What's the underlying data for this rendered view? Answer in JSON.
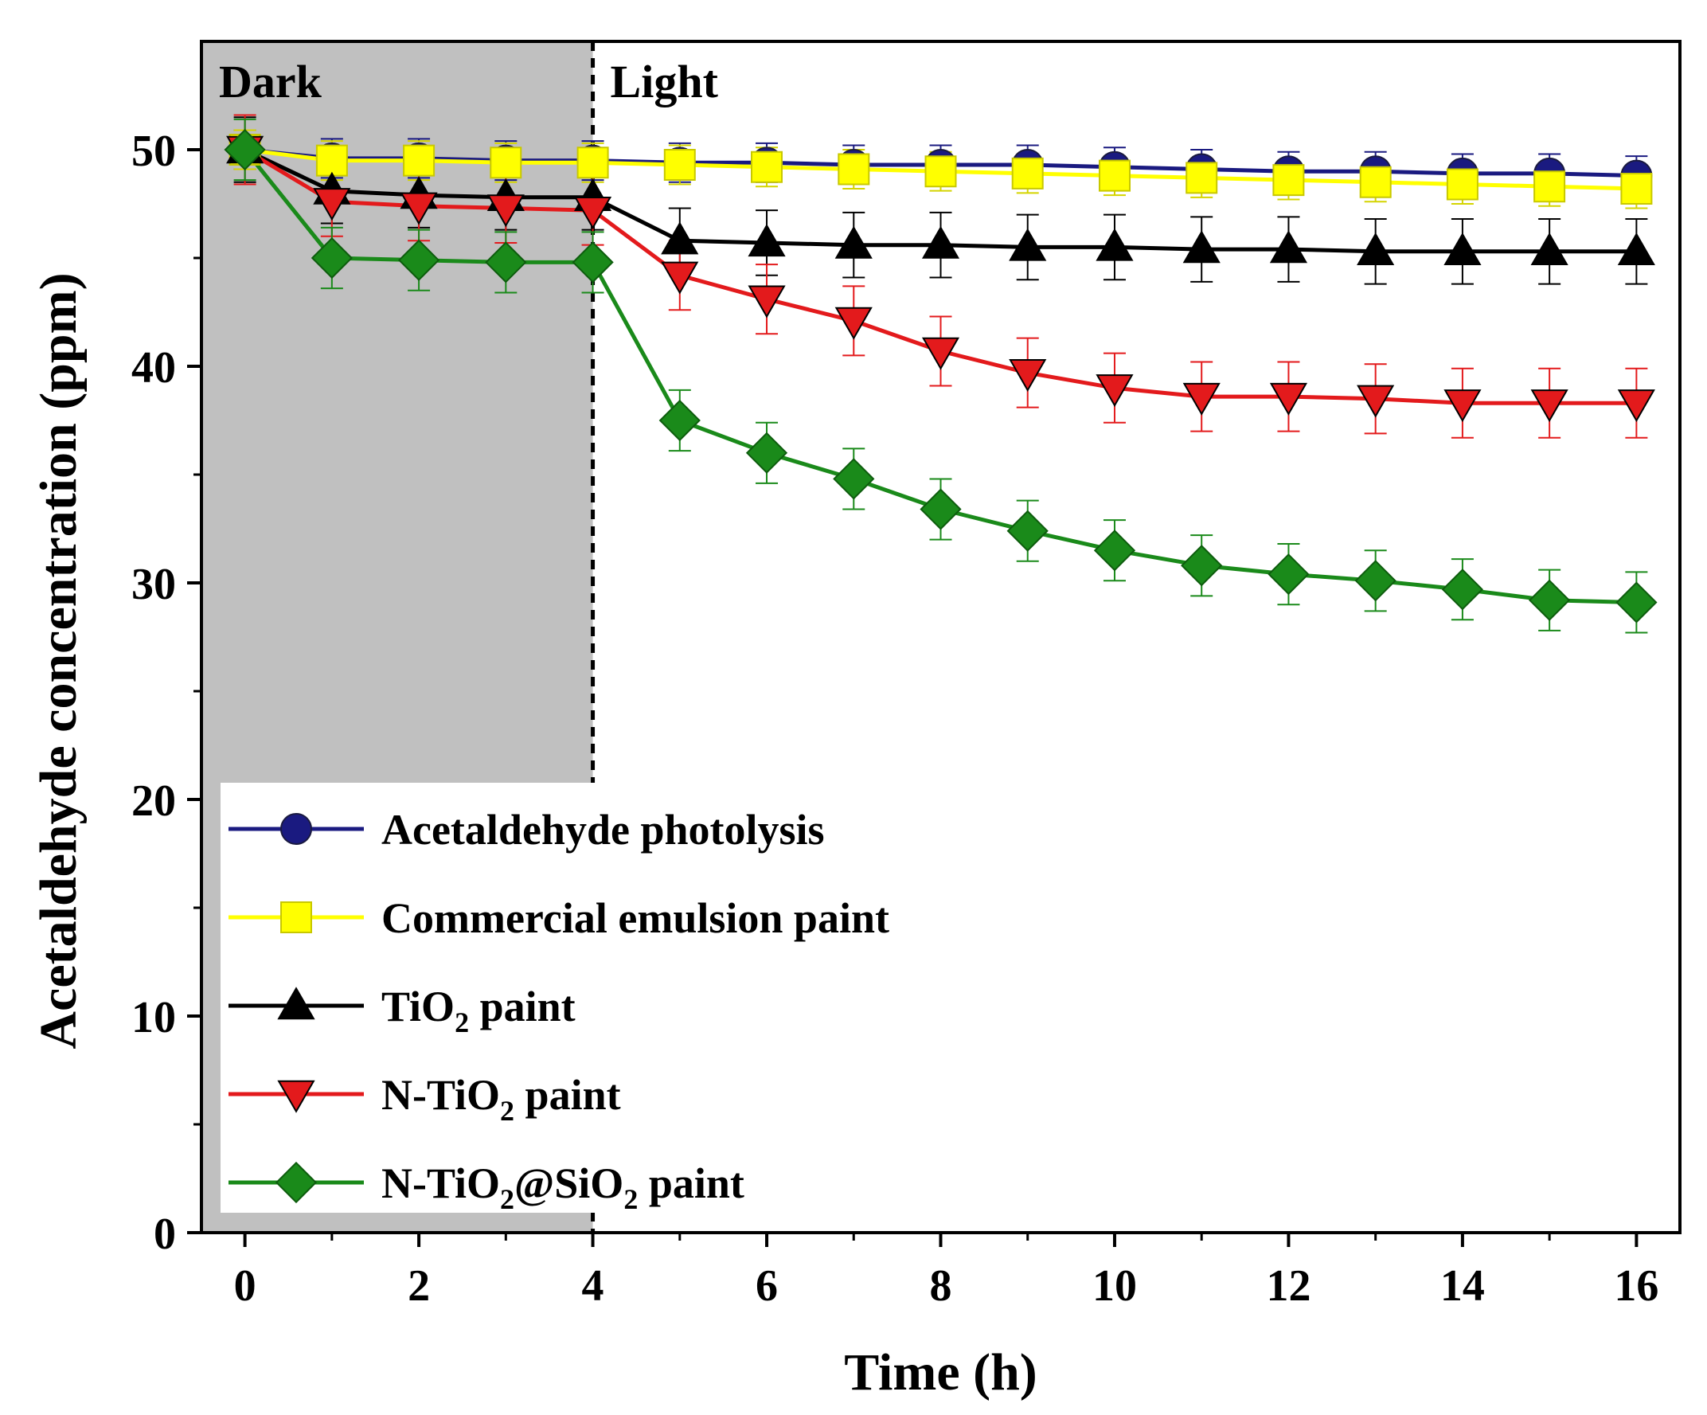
{
  "chart_data": {
    "type": "line",
    "xlabel": "Time (h)",
    "ylabel": "Acetaldehyde concentration (ppm)",
    "xlim": [
      -0.5,
      16.5
    ],
    "ylim": [
      0,
      55
    ],
    "xticks": [
      0,
      2,
      4,
      6,
      8,
      10,
      12,
      14,
      16
    ],
    "yticks": [
      0,
      10,
      20,
      30,
      40,
      50
    ],
    "grid": false,
    "legend_position": "bottom-left",
    "regions": [
      {
        "label": "Dark",
        "x_start": -0.5,
        "x_end": 4,
        "color": "#c0c0c0"
      },
      {
        "label": "Light",
        "x_start": 4,
        "x_end": 16.5
      }
    ],
    "x": [
      0,
      1,
      2,
      3,
      4,
      5,
      6,
      7,
      8,
      9,
      10,
      11,
      12,
      13,
      14,
      15,
      16
    ],
    "series": [
      {
        "name": "Acetaldehyde photolysis",
        "name_parts": [
          {
            "t": "Acetaldehyde photolysis"
          }
        ],
        "color": "#1a1a80",
        "marker": "circle",
        "values": [
          50.0,
          49.6,
          49.6,
          49.5,
          49.5,
          49.4,
          49.4,
          49.3,
          49.3,
          49.3,
          49.2,
          49.1,
          49.0,
          49.0,
          48.9,
          48.9,
          48.8
        ],
        "error": [
          0.9,
          0.9,
          0.9,
          0.9,
          0.9,
          0.9,
          0.9,
          0.9,
          0.9,
          0.9,
          0.9,
          0.9,
          0.9,
          0.9,
          0.9,
          0.9,
          0.9
        ]
      },
      {
        "name": "Commercial emulsion paint",
        "name_parts": [
          {
            "t": "Commercial emulsion paint"
          }
        ],
        "color": "#ffff00",
        "marker": "square",
        "values": [
          50.0,
          49.5,
          49.5,
          49.4,
          49.4,
          49.3,
          49.2,
          49.1,
          49.0,
          48.9,
          48.8,
          48.7,
          48.6,
          48.5,
          48.4,
          48.3,
          48.2
        ],
        "error": [
          0.9,
          0.9,
          0.9,
          0.9,
          0.9,
          0.9,
          0.9,
          0.9,
          0.9,
          0.9,
          0.9,
          0.9,
          0.9,
          0.9,
          0.9,
          0.9,
          0.9
        ]
      },
      {
        "name": "TiO2 paint",
        "name_parts": [
          {
            "t": "TiO"
          },
          {
            "t": "2",
            "sub": true
          },
          {
            "t": " paint"
          }
        ],
        "color": "#000000",
        "marker": "triangle-up",
        "values": [
          50.0,
          48.1,
          47.9,
          47.8,
          47.8,
          45.8,
          45.7,
          45.6,
          45.6,
          45.5,
          45.5,
          45.4,
          45.4,
          45.3,
          45.3,
          45.3,
          45.3
        ],
        "error": [
          1.5,
          1.5,
          1.5,
          1.5,
          1.5,
          1.5,
          1.5,
          1.5,
          1.5,
          1.5,
          1.5,
          1.5,
          1.5,
          1.5,
          1.5,
          1.5,
          1.5
        ]
      },
      {
        "name": "N-TiO2 paint",
        "name_parts": [
          {
            "t": "N-TiO"
          },
          {
            "t": "2",
            "sub": true
          },
          {
            "t": " paint"
          }
        ],
        "color": "#e31a1c",
        "marker": "triangle-down",
        "values": [
          50.0,
          47.6,
          47.4,
          47.3,
          47.2,
          44.2,
          43.1,
          42.1,
          40.7,
          39.7,
          39.0,
          38.6,
          38.6,
          38.5,
          38.3,
          38.3,
          38.3
        ],
        "error": [
          1.6,
          1.6,
          1.6,
          1.6,
          1.6,
          1.6,
          1.6,
          1.6,
          1.6,
          1.6,
          1.6,
          1.6,
          1.6,
          1.6,
          1.6,
          1.6,
          1.6
        ]
      },
      {
        "name": "N-TiO2@SiO2 paint",
        "name_parts": [
          {
            "t": "N-TiO"
          },
          {
            "t": "2",
            "sub": true
          },
          {
            "t": "@SiO"
          },
          {
            "t": "2",
            "sub": true
          },
          {
            "t": " paint"
          }
        ],
        "color": "#1a8a1a",
        "marker": "diamond",
        "values": [
          50.0,
          45.0,
          44.9,
          44.8,
          44.8,
          37.5,
          36.0,
          34.8,
          33.4,
          32.4,
          31.5,
          30.8,
          30.4,
          30.1,
          29.7,
          29.2,
          29.1
        ],
        "error": [
          1.4,
          1.4,
          1.4,
          1.4,
          1.4,
          1.4,
          1.4,
          1.4,
          1.4,
          1.4,
          1.4,
          1.4,
          1.4,
          1.4,
          1.4,
          1.4,
          1.4
        ]
      }
    ]
  }
}
